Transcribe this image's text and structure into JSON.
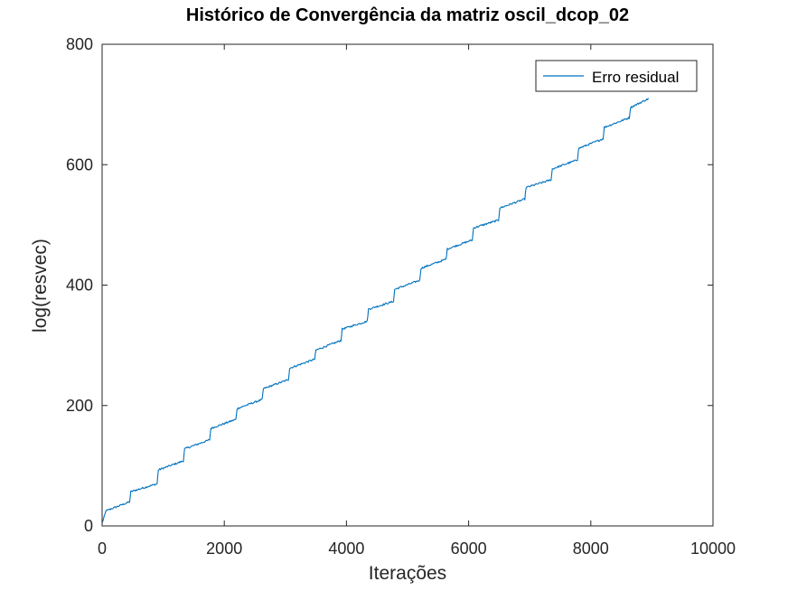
{
  "chart_data": {
    "type": "line",
    "title": "Histórico de Convergência da matriz oscil_dcop_02",
    "xlabel": "Iterações",
    "ylabel": "log(resvec)",
    "xlim": [
      0,
      10000
    ],
    "ylim": [
      0,
      800
    ],
    "xticks": [
      0,
      2000,
      4000,
      6000,
      8000,
      10000
    ],
    "yticks": [
      0,
      200,
      400,
      600,
      800
    ],
    "xtick_labels": [
      "0",
      "2000",
      "4000",
      "6000",
      "8000",
      "10000"
    ],
    "ytick_labels": [
      "0",
      "200",
      "400",
      "600",
      "800"
    ],
    "grid": false,
    "legend": {
      "position": "top-right",
      "entries": [
        "Erro residual"
      ]
    },
    "colors": {
      "series": "#0072BD",
      "axes": "#262626"
    },
    "series": [
      {
        "name": "Erro residual",
        "x": [
          0,
          50,
          60,
          450,
          470,
          900,
          920,
          1330,
          1350,
          1760,
          1780,
          2190,
          2210,
          2620,
          2640,
          3050,
          3070,
          3480,
          3500,
          3910,
          3930,
          4340,
          4360,
          4770,
          4790,
          5200,
          5220,
          5630,
          5650,
          6060,
          6080,
          6490,
          6510,
          6920,
          6940,
          7350,
          7370,
          7780,
          7800,
          8200,
          8220,
          8630,
          8650,
          8950
        ],
        "y": [
          5,
          20,
          25,
          40,
          57,
          70,
          93,
          108,
          128,
          143,
          162,
          177,
          195,
          210,
          228,
          243,
          262,
          277,
          292,
          308,
          327,
          340,
          360,
          373,
          393,
          408,
          428,
          443,
          460,
          475,
          495,
          508,
          528,
          543,
          562,
          575,
          593,
          608,
          627,
          643,
          662,
          678,
          695,
          710
        ]
      }
    ]
  }
}
